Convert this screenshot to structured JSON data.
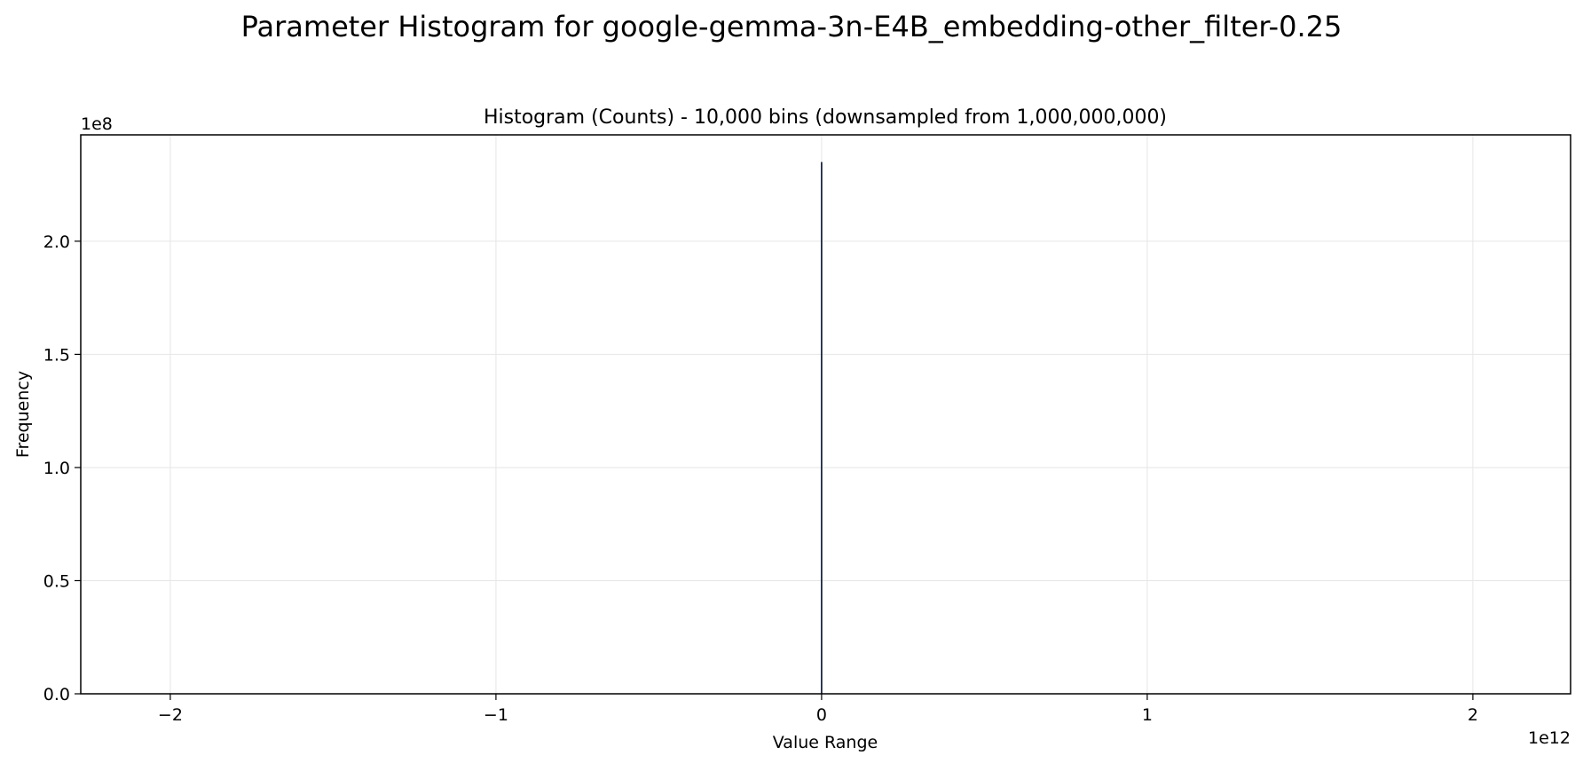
{
  "figure": {
    "title": "Parameter Histogram for google-gemma-3n-E4B_embedding-other_filter-0.25"
  },
  "chart_data": {
    "type": "bar",
    "title": "Histogram (Counts) - 10,000 bins (downsampled from 1,000,000,000)",
    "xlabel": "Value Range",
    "ylabel": "Frequency",
    "x_offset_text": "1e12",
    "y_offset_text": "1e8",
    "x_scale_exponent": 12,
    "y_scale_exponent": 8,
    "xlim": [
      -2275000000000.0,
      2300000000000.0
    ],
    "ylim": [
      0,
      247000000.0
    ],
    "x_ticks": [
      -2,
      -1,
      0,
      1,
      2
    ],
    "x_tick_labels": [
      "−2",
      "−1",
      "0",
      "1",
      "2"
    ],
    "y_ticks": [
      0.0,
      0.5,
      1.0,
      1.5,
      2.0
    ],
    "y_tick_labels": [
      "0.0",
      "0.5",
      "1.0",
      "1.5",
      "2.0"
    ],
    "grid": true,
    "bins": [
      {
        "x": 0,
        "value": 235000000.0
      }
    ],
    "colors": {
      "bar": "#1f2a44",
      "grid": "#e6e6e6",
      "axes": "#000000"
    }
  }
}
